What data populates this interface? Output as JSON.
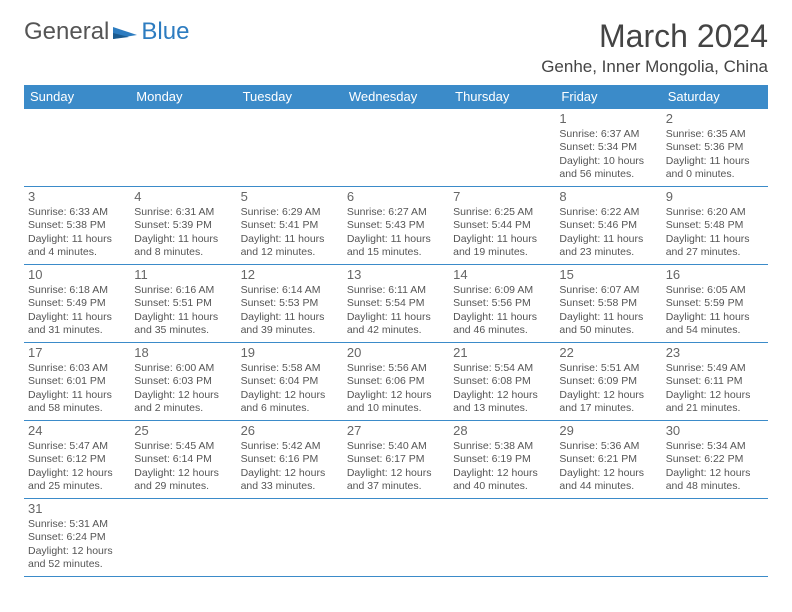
{
  "logo": {
    "text1": "General",
    "text2": "Blue"
  },
  "title": "March 2024",
  "location": "Genhe, Inner Mongolia, China",
  "colors": {
    "header_bg": "#3b8bc9",
    "header_text": "#ffffff",
    "border": "#3b8bc9",
    "text": "#555555",
    "logo_gray": "#555555",
    "logo_blue": "#2d7cc0"
  },
  "weekdays": [
    "Sunday",
    "Monday",
    "Tuesday",
    "Wednesday",
    "Thursday",
    "Friday",
    "Saturday"
  ],
  "layout": {
    "first_weekday_index": 5,
    "days_in_month": 31
  },
  "days": {
    "1": {
      "sunrise": "6:37 AM",
      "sunset": "5:34 PM",
      "daylight_h": 10,
      "daylight_m": 56
    },
    "2": {
      "sunrise": "6:35 AM",
      "sunset": "5:36 PM",
      "daylight_h": 11,
      "daylight_m": 0
    },
    "3": {
      "sunrise": "6:33 AM",
      "sunset": "5:38 PM",
      "daylight_h": 11,
      "daylight_m": 4
    },
    "4": {
      "sunrise": "6:31 AM",
      "sunset": "5:39 PM",
      "daylight_h": 11,
      "daylight_m": 8
    },
    "5": {
      "sunrise": "6:29 AM",
      "sunset": "5:41 PM",
      "daylight_h": 11,
      "daylight_m": 12
    },
    "6": {
      "sunrise": "6:27 AM",
      "sunset": "5:43 PM",
      "daylight_h": 11,
      "daylight_m": 15
    },
    "7": {
      "sunrise": "6:25 AM",
      "sunset": "5:44 PM",
      "daylight_h": 11,
      "daylight_m": 19
    },
    "8": {
      "sunrise": "6:22 AM",
      "sunset": "5:46 PM",
      "daylight_h": 11,
      "daylight_m": 23
    },
    "9": {
      "sunrise": "6:20 AM",
      "sunset": "5:48 PM",
      "daylight_h": 11,
      "daylight_m": 27
    },
    "10": {
      "sunrise": "6:18 AM",
      "sunset": "5:49 PM",
      "daylight_h": 11,
      "daylight_m": 31
    },
    "11": {
      "sunrise": "6:16 AM",
      "sunset": "5:51 PM",
      "daylight_h": 11,
      "daylight_m": 35
    },
    "12": {
      "sunrise": "6:14 AM",
      "sunset": "5:53 PM",
      "daylight_h": 11,
      "daylight_m": 39
    },
    "13": {
      "sunrise": "6:11 AM",
      "sunset": "5:54 PM",
      "daylight_h": 11,
      "daylight_m": 42
    },
    "14": {
      "sunrise": "6:09 AM",
      "sunset": "5:56 PM",
      "daylight_h": 11,
      "daylight_m": 46
    },
    "15": {
      "sunrise": "6:07 AM",
      "sunset": "5:58 PM",
      "daylight_h": 11,
      "daylight_m": 50
    },
    "16": {
      "sunrise": "6:05 AM",
      "sunset": "5:59 PM",
      "daylight_h": 11,
      "daylight_m": 54
    },
    "17": {
      "sunrise": "6:03 AM",
      "sunset": "6:01 PM",
      "daylight_h": 11,
      "daylight_m": 58
    },
    "18": {
      "sunrise": "6:00 AM",
      "sunset": "6:03 PM",
      "daylight_h": 12,
      "daylight_m": 2
    },
    "19": {
      "sunrise": "5:58 AM",
      "sunset": "6:04 PM",
      "daylight_h": 12,
      "daylight_m": 6
    },
    "20": {
      "sunrise": "5:56 AM",
      "sunset": "6:06 PM",
      "daylight_h": 12,
      "daylight_m": 10
    },
    "21": {
      "sunrise": "5:54 AM",
      "sunset": "6:08 PM",
      "daylight_h": 12,
      "daylight_m": 13
    },
    "22": {
      "sunrise": "5:51 AM",
      "sunset": "6:09 PM",
      "daylight_h": 12,
      "daylight_m": 17
    },
    "23": {
      "sunrise": "5:49 AM",
      "sunset": "6:11 PM",
      "daylight_h": 12,
      "daylight_m": 21
    },
    "24": {
      "sunrise": "5:47 AM",
      "sunset": "6:12 PM",
      "daylight_h": 12,
      "daylight_m": 25
    },
    "25": {
      "sunrise": "5:45 AM",
      "sunset": "6:14 PM",
      "daylight_h": 12,
      "daylight_m": 29
    },
    "26": {
      "sunrise": "5:42 AM",
      "sunset": "6:16 PM",
      "daylight_h": 12,
      "daylight_m": 33
    },
    "27": {
      "sunrise": "5:40 AM",
      "sunset": "6:17 PM",
      "daylight_h": 12,
      "daylight_m": 37
    },
    "28": {
      "sunrise": "5:38 AM",
      "sunset": "6:19 PM",
      "daylight_h": 12,
      "daylight_m": 40
    },
    "29": {
      "sunrise": "5:36 AM",
      "sunset": "6:21 PM",
      "daylight_h": 12,
      "daylight_m": 44
    },
    "30": {
      "sunrise": "5:34 AM",
      "sunset": "6:22 PM",
      "daylight_h": 12,
      "daylight_m": 48
    },
    "31": {
      "sunrise": "5:31 AM",
      "sunset": "6:24 PM",
      "daylight_h": 12,
      "daylight_m": 52
    }
  },
  "labels": {
    "sunrise": "Sunrise:",
    "sunset": "Sunset:",
    "daylight": "Daylight:"
  }
}
